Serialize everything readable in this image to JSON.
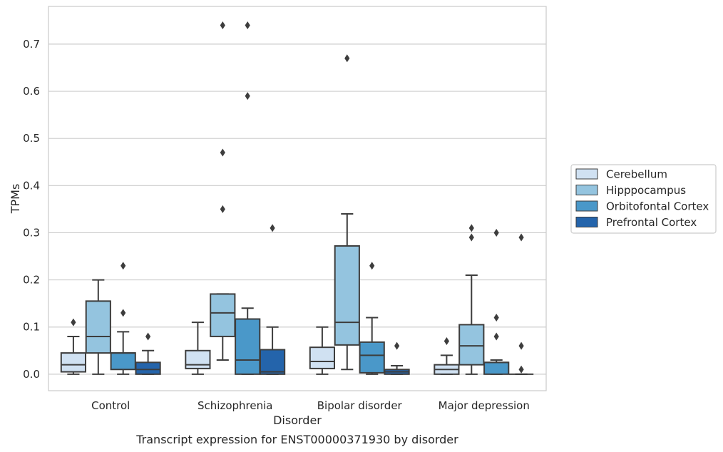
{
  "chart_data": {
    "type": "box",
    "xlabel": "Disorder",
    "ylabel": "TPMs",
    "caption": "Transcript expression for ENST00000371930 by disorder",
    "ylim": [
      -0.035,
      0.78
    ],
    "yticks": [
      0.0,
      0.1,
      0.2,
      0.3,
      0.4,
      0.5,
      0.6,
      0.7
    ],
    "ytick_labels": [
      "0.0",
      "0.1",
      "0.2",
      "0.3",
      "0.4",
      "0.5",
      "0.6",
      "0.7"
    ],
    "grid": "horizontal",
    "legend_position": "right",
    "categories": [
      "Control",
      "Schizophrenia",
      "Bipolar disorder",
      "Major depression"
    ],
    "series": [
      {
        "name": "Cerebellum",
        "color": "#d0e1f2",
        "boxes": [
          {
            "whislo": 0.0,
            "q1": 0.005,
            "med": 0.02,
            "q3": 0.045,
            "whishi": 0.08,
            "fliers": [
              0.11
            ]
          },
          {
            "whislo": 0.0,
            "q1": 0.012,
            "med": 0.02,
            "q3": 0.05,
            "whishi": 0.11,
            "fliers": []
          },
          {
            "whislo": 0.0,
            "q1": 0.012,
            "med": 0.027,
            "q3": 0.057,
            "whishi": 0.1,
            "fliers": []
          },
          {
            "whislo": 0.0,
            "q1": 0.0,
            "med": 0.01,
            "q3": 0.02,
            "whishi": 0.04,
            "fliers": [
              0.07
            ]
          }
        ]
      },
      {
        "name": "Hipppocampus",
        "color": "#94c4df",
        "boxes": [
          {
            "whislo": 0.0,
            "q1": 0.045,
            "med": 0.08,
            "q3": 0.155,
            "whishi": 0.2,
            "fliers": []
          },
          {
            "whislo": 0.03,
            "q1": 0.08,
            "med": 0.13,
            "q3": 0.17,
            "whishi": 0.17,
            "fliers": [
              0.35,
              0.47,
              0.74
            ]
          },
          {
            "whislo": 0.01,
            "q1": 0.062,
            "med": 0.11,
            "q3": 0.272,
            "whishi": 0.34,
            "fliers": [
              0.67
            ]
          },
          {
            "whislo": 0.0,
            "q1": 0.02,
            "med": 0.06,
            "q3": 0.105,
            "whishi": 0.21,
            "fliers": [
              0.29,
              0.31
            ]
          }
        ]
      },
      {
        "name": "Orbitofontal Cortex",
        "color": "#4a98c9",
        "boxes": [
          {
            "whislo": 0.0,
            "q1": 0.01,
            "med": 0.045,
            "q3": 0.045,
            "whishi": 0.09,
            "fliers": [
              0.13,
              0.23
            ]
          },
          {
            "whislo": 0.0,
            "q1": 0.0,
            "med": 0.03,
            "q3": 0.117,
            "whishi": 0.14,
            "fliers": [
              0.59,
              0.74
            ]
          },
          {
            "whislo": 0.0,
            "q1": 0.003,
            "med": 0.04,
            "q3": 0.068,
            "whishi": 0.12,
            "fliers": [
              0.23
            ]
          },
          {
            "whislo": 0.0,
            "q1": 0.0,
            "med": 0.025,
            "q3": 0.025,
            "whishi": 0.03,
            "fliers": [
              0.08,
              0.12,
              0.3
            ]
          }
        ]
      },
      {
        "name": "Prefrontal Cortex",
        "color": "#2464ab",
        "boxes": [
          {
            "whislo": 0.0,
            "q1": 0.0,
            "med": 0.01,
            "q3": 0.025,
            "whishi": 0.05,
            "fliers": [
              0.08
            ]
          },
          {
            "whislo": 0.0,
            "q1": 0.0,
            "med": 0.005,
            "q3": 0.052,
            "whishi": 0.1,
            "fliers": [
              0.31
            ]
          },
          {
            "whislo": 0.0,
            "q1": 0.0,
            "med": 0.005,
            "q3": 0.01,
            "whishi": 0.018,
            "fliers": [
              0.06
            ]
          },
          {
            "whislo": 0.0,
            "q1": 0.0,
            "med": 0.0,
            "q3": 0.0,
            "whishi": 0.0,
            "fliers": [
              0.01,
              0.06,
              0.29
            ]
          }
        ]
      }
    ]
  }
}
